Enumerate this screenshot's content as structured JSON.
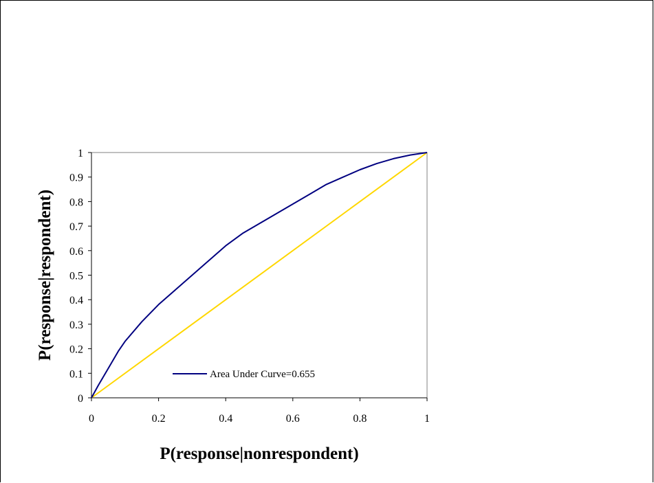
{
  "chart_data": {
    "type": "line",
    "title": "",
    "xlabel": "P(response|nonrespondent)",
    "ylabel": "P(response|respondent)",
    "xlim": [
      0,
      1
    ],
    "ylim": [
      0,
      1
    ],
    "x_ticks": [
      "0",
      "0.2",
      "0.4",
      "0.6",
      "0.8",
      "1"
    ],
    "y_ticks": [
      "0",
      "0.1",
      "0.2",
      "0.3",
      "0.4",
      "0.5",
      "0.6",
      "0.7",
      "0.8",
      "0.9",
      "1"
    ],
    "grid": false,
    "legend": {
      "entries": [
        "Area Under Curve=0.655"
      ],
      "placement": "bottom-center inside plot"
    },
    "series": [
      {
        "name": "Area Under Curve=0.655",
        "color": "#000080",
        "x": [
          0,
          0.02,
          0.05,
          0.08,
          0.1,
          0.15,
          0.2,
          0.25,
          0.3,
          0.35,
          0.4,
          0.45,
          0.5,
          0.55,
          0.6,
          0.65,
          0.7,
          0.75,
          0.8,
          0.85,
          0.9,
          0.95,
          1
        ],
        "y": [
          0,
          0.05,
          0.12,
          0.19,
          0.23,
          0.31,
          0.38,
          0.44,
          0.5,
          0.56,
          0.62,
          0.67,
          0.71,
          0.75,
          0.79,
          0.83,
          0.87,
          0.9,
          0.93,
          0.955,
          0.975,
          0.99,
          1
        ]
      },
      {
        "color": "#FFD700",
        "x": [
          0,
          1
        ],
        "y": [
          0,
          1
        ]
      }
    ]
  }
}
